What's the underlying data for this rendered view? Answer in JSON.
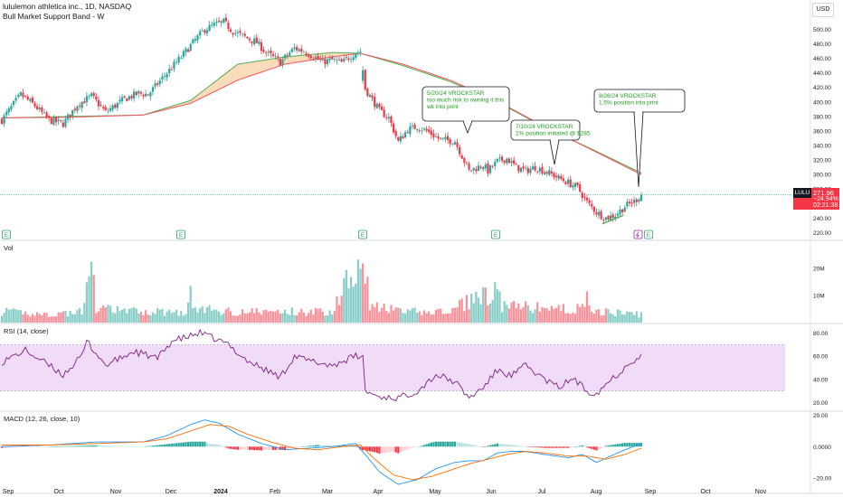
{
  "header": {
    "title": "lululemon athletica inc., 1D, NASDAQ",
    "indicator": "Bull Market Support Band - W"
  },
  "currency_button": "USD",
  "price_tag": {
    "symbol": "LULU",
    "price": "271.96",
    "change": "−24.94%",
    "countdown": "02:21:38"
  },
  "panels": {
    "volume": "Vol",
    "rsi": "RSI (14, close)",
    "macd": "MACD (12, 26, close, 10)"
  },
  "annotations": [
    {
      "lines": [
        "5/20/24 VROCKSTAR",
        "too much risk to owning it this",
        "wk into print"
      ]
    },
    {
      "lines": [
        "7/10/24 VROCKSTAR",
        "1% position initiated @ $285"
      ]
    },
    {
      "lines": [
        "8/26/24 VROCKSTAR",
        "1.5% position into print"
      ]
    }
  ],
  "earnings_marker": "E",
  "colors": {
    "up": "#26a69a",
    "down": "#f23645",
    "band_fast": "#4caf50",
    "band_slow": "#f7525f",
    "band_fill": "#f8cfa3",
    "rsi": "#7e1f86",
    "rsi_band": "#f0dcf7",
    "macd": "#2196f3",
    "signal": "#ff6d00",
    "note_text": "#1b9e1b"
  },
  "chart_data": {
    "type": "candlestick",
    "x_tick_labels": [
      "Sep",
      "Oct",
      "Nov",
      "Dec",
      "2024",
      "Feb",
      "Mar",
      "Apr",
      "May",
      "Jun",
      "Jul",
      "Aug",
      "Sep",
      "Oct",
      "Nov"
    ],
    "price_axis": {
      "ticks": [
        "500.00",
        "480.00",
        "460.00",
        "440.00",
        "420.00",
        "400.00",
        "380.00",
        "360.00",
        "340.00",
        "320.00",
        "300.00",
        "280.00",
        "260.00",
        "240.00",
        "220.00"
      ],
      "range": [
        213,
        518
      ]
    },
    "volume_axis": {
      "ticks": [
        "20M",
        "10M"
      ]
    },
    "rsi_axis": {
      "ticks": [
        "80.00",
        "60.00",
        "40.00",
        "20.00"
      ],
      "bands": [
        30,
        70
      ],
      "range": [
        15,
        85
      ]
    },
    "macd_axis": {
      "ticks": [
        "20.00",
        "0.0000",
        "−20.00"
      ],
      "range": [
        -28,
        22
      ]
    },
    "last_price": 271.96,
    "price_anchors": [
      [
        0,
        375
      ],
      [
        8,
        410
      ],
      [
        14,
        395
      ],
      [
        20,
        375
      ],
      [
        26,
        370
      ],
      [
        32,
        396
      ],
      [
        38,
        408
      ],
      [
        44,
        386
      ],
      [
        52,
        404
      ],
      [
        58,
        412
      ],
      [
        62,
        410
      ],
      [
        70,
        440
      ],
      [
        76,
        462
      ],
      [
        80,
        478
      ],
      [
        86,
        500
      ],
      [
        90,
        506
      ],
      [
        94,
        510
      ],
      [
        98,
        497
      ],
      [
        104,
        488
      ],
      [
        108,
        482
      ],
      [
        112,
        468
      ],
      [
        118,
        455
      ],
      [
        124,
        474
      ],
      [
        128,
        470
      ],
      [
        136,
        455
      ],
      [
        140,
        458
      ],
      [
        144,
        454
      ],
      [
        150,
        468
      ],
      [
        152,
        470
      ],
      [
        154,
        418
      ],
      [
        160,
        388
      ],
      [
        164,
        378
      ],
      [
        168,
        345
      ],
      [
        172,
        362
      ],
      [
        176,
        366
      ],
      [
        180,
        360
      ],
      [
        186,
        348
      ],
      [
        192,
        346
      ],
      [
        198,
        305
      ],
      [
        204,
        313
      ],
      [
        206,
        305
      ],
      [
        210,
        318
      ],
      [
        214,
        322
      ],
      [
        218,
        310
      ],
      [
        222,
        305
      ],
      [
        226,
        310
      ],
      [
        232,
        302
      ],
      [
        238,
        292
      ],
      [
        244,
        282
      ],
      [
        248,
        262
      ],
      [
        252,
        248
      ],
      [
        256,
        240
      ],
      [
        260,
        244
      ],
      [
        264,
        256
      ],
      [
        268,
        263
      ],
      [
        271,
        271.96
      ]
    ],
    "bear_gap_after_index": 152,
    "band_anchors": {
      "fast": [
        [
          0,
          378
        ],
        [
          30,
          380
        ],
        [
          60,
          382
        ],
        [
          80,
          402
        ],
        [
          100,
          452
        ],
        [
          120,
          462
        ],
        [
          140,
          468
        ],
        [
          152,
          467
        ],
        [
          170,
          450
        ],
        [
          190,
          428
        ],
        [
          210,
          400
        ],
        [
          230,
          365
        ],
        [
          250,
          335
        ],
        [
          271,
          302
        ]
      ],
      "slow": [
        [
          0,
          378
        ],
        [
          30,
          379
        ],
        [
          60,
          382
        ],
        [
          80,
          398
        ],
        [
          100,
          430
        ],
        [
          120,
          452
        ],
        [
          140,
          462
        ],
        [
          152,
          467
        ],
        [
          170,
          452
        ],
        [
          190,
          430
        ],
        [
          210,
          401
        ],
        [
          230,
          366
        ],
        [
          250,
          334
        ],
        [
          271,
          300
        ]
      ]
    },
    "volume_anchors": [
      [
        0,
        4
      ],
      [
        20,
        3
      ],
      [
        34,
        4
      ],
      [
        36,
        11
      ],
      [
        37,
        28
      ],
      [
        40,
        5
      ],
      [
        60,
        4
      ],
      [
        78,
        4
      ],
      [
        80,
        10
      ],
      [
        82,
        5
      ],
      [
        100,
        4
      ],
      [
        120,
        4
      ],
      [
        130,
        4
      ],
      [
        140,
        4
      ],
      [
        153,
        29
      ],
      [
        156,
        6
      ],
      [
        170,
        4
      ],
      [
        190,
        4
      ],
      [
        200,
        9
      ],
      [
        210,
        11
      ],
      [
        212,
        6
      ],
      [
        240,
        5
      ],
      [
        246,
        5
      ],
      [
        248,
        9
      ],
      [
        252,
        4
      ],
      [
        271,
        3
      ]
    ],
    "rsi_anchors": [
      [
        0,
        55
      ],
      [
        10,
        65
      ],
      [
        20,
        52
      ],
      [
        26,
        44
      ],
      [
        34,
        60
      ],
      [
        36,
        73
      ],
      [
        44,
        52
      ],
      [
        56,
        64
      ],
      [
        66,
        58
      ],
      [
        72,
        73
      ],
      [
        78,
        76
      ],
      [
        84,
        80
      ],
      [
        90,
        75
      ],
      [
        96,
        70
      ],
      [
        104,
        56
      ],
      [
        110,
        50
      ],
      [
        118,
        42
      ],
      [
        124,
        60
      ],
      [
        130,
        56
      ],
      [
        140,
        52
      ],
      [
        150,
        60
      ],
      [
        153,
        59
      ],
      [
        154,
        30
      ],
      [
        160,
        25
      ],
      [
        168,
        24
      ],
      [
        176,
        30
      ],
      [
        184,
        44
      ],
      [
        192,
        38
      ],
      [
        198,
        24
      ],
      [
        204,
        33
      ],
      [
        210,
        48
      ],
      [
        216,
        43
      ],
      [
        222,
        52
      ],
      [
        230,
        40
      ],
      [
        236,
        33
      ],
      [
        242,
        41
      ],
      [
        248,
        30
      ],
      [
        252,
        28
      ],
      [
        258,
        40
      ],
      [
        262,
        46
      ],
      [
        266,
        55
      ],
      [
        271,
        60
      ]
    ],
    "macd_anchors": [
      [
        0,
        0
      ],
      [
        20,
        1
      ],
      [
        40,
        3
      ],
      [
        60,
        3
      ],
      [
        70,
        7
      ],
      [
        80,
        14
      ],
      [
        86,
        17
      ],
      [
        92,
        15
      ],
      [
        100,
        8
      ],
      [
        110,
        2
      ],
      [
        120,
        -2
      ],
      [
        130,
        -1
      ],
      [
        140,
        0
      ],
      [
        150,
        2
      ],
      [
        154,
        -5
      ],
      [
        160,
        -16
      ],
      [
        168,
        -24
      ],
      [
        176,
        -21
      ],
      [
        184,
        -14
      ],
      [
        192,
        -10
      ],
      [
        198,
        -9
      ],
      [
        204,
        -9
      ],
      [
        210,
        -4
      ],
      [
        216,
        -3
      ],
      [
        222,
        -3
      ],
      [
        230,
        -5
      ],
      [
        240,
        -7
      ],
      [
        246,
        -5
      ],
      [
        252,
        -10
      ],
      [
        258,
        -6
      ],
      [
        264,
        -2
      ],
      [
        271,
        2
      ]
    ],
    "signal_anchors": [
      [
        0,
        1
      ],
      [
        20,
        1
      ],
      [
        40,
        2
      ],
      [
        60,
        3
      ],
      [
        70,
        5
      ],
      [
        80,
        10
      ],
      [
        88,
        14
      ],
      [
        96,
        13
      ],
      [
        104,
        8
      ],
      [
        114,
        3
      ],
      [
        124,
        -1
      ],
      [
        134,
        -2
      ],
      [
        144,
        0
      ],
      [
        152,
        1
      ],
      [
        158,
        -8
      ],
      [
        166,
        -18
      ],
      [
        174,
        -21
      ],
      [
        182,
        -19
      ],
      [
        190,
        -15
      ],
      [
        198,
        -11
      ],
      [
        206,
        -8
      ],
      [
        214,
        -5
      ],
      [
        222,
        -3
      ],
      [
        230,
        -4
      ],
      [
        240,
        -6
      ],
      [
        248,
        -6
      ],
      [
        256,
        -8
      ],
      [
        264,
        -5
      ],
      [
        271,
        -1
      ]
    ]
  }
}
